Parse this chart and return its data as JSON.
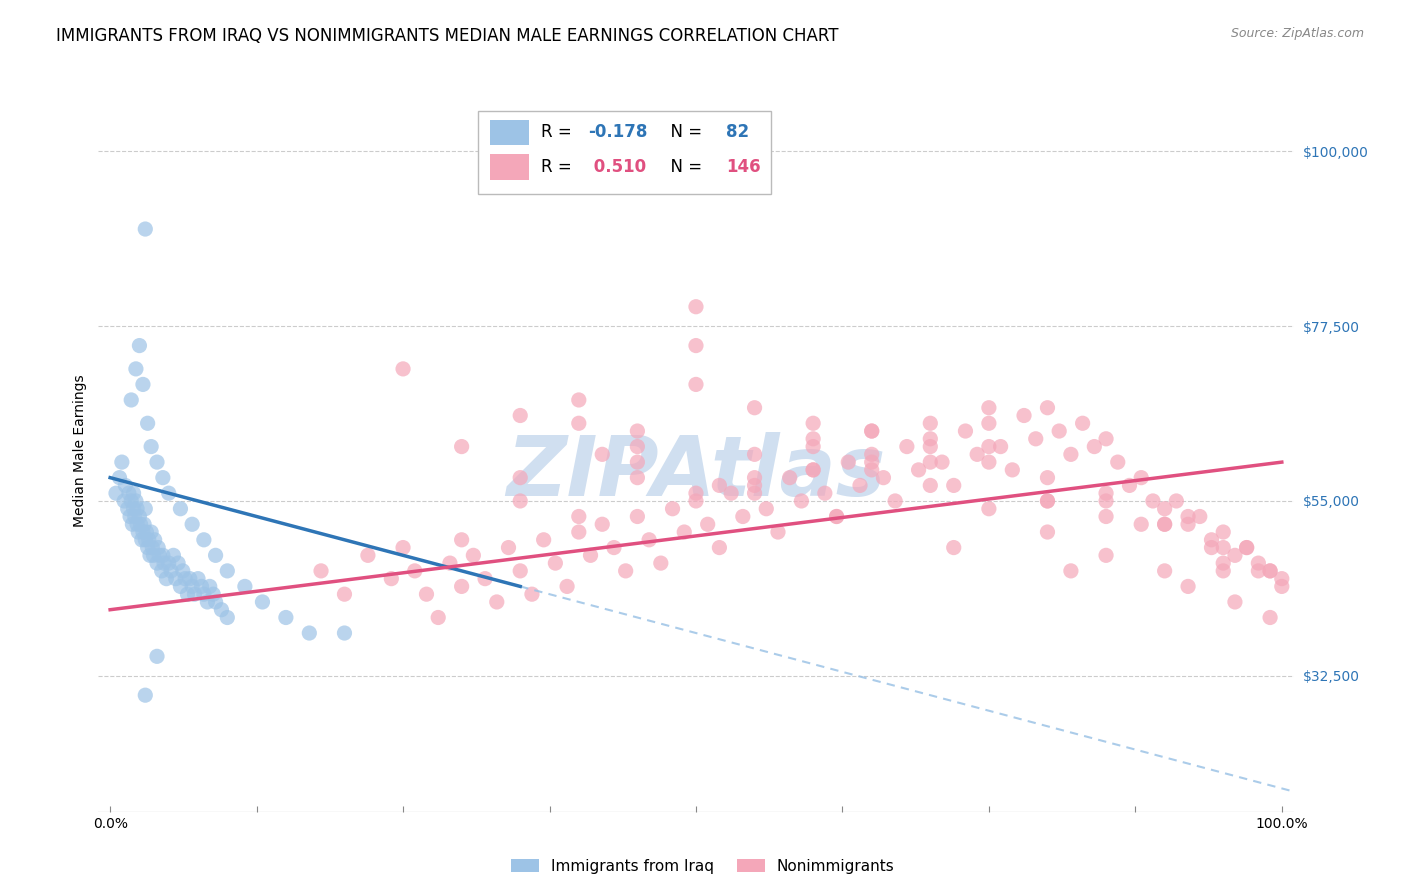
{
  "title": "IMMIGRANTS FROM IRAQ VS NONIMMIGRANTS MEDIAN MALE EARNINGS CORRELATION CHART",
  "source": "Source: ZipAtlas.com",
  "ylabel": "Median Male Earnings",
  "ytick_labels": [
    "$32,500",
    "$55,000",
    "$77,500",
    "$100,000"
  ],
  "ytick_values": [
    32500,
    55000,
    77500,
    100000
  ],
  "ymin": 15000,
  "ymax": 108000,
  "xmin": -0.01,
  "xmax": 1.01,
  "r_iraq": -0.178,
  "n_iraq": 82,
  "r_nonimm": 0.51,
  "n_nonimm": 146,
  "color_iraq": "#9DC3E6",
  "color_nonimm": "#F4A7B9",
  "color_iraq_line": "#2E75B6",
  "color_nonimm_line": "#E05080",
  "color_iraq_line_dashed": "#9DC3E6",
  "color_r_value": "#2E75B6",
  "color_r_nonimm": "#E05080",
  "watermark_color": "#D0DFF0",
  "background_color": "#FFFFFF",
  "grid_color": "#CCCCCC",
  "title_fontsize": 12,
  "axis_label_fontsize": 10,
  "tick_fontsize": 10,
  "legend_fontsize": 12,
  "iraq_x": [
    0.005,
    0.008,
    0.01,
    0.012,
    0.013,
    0.015,
    0.016,
    0.017,
    0.018,
    0.019,
    0.02,
    0.02,
    0.021,
    0.022,
    0.023,
    0.023,
    0.024,
    0.025,
    0.026,
    0.027,
    0.028,
    0.029,
    0.03,
    0.03,
    0.031,
    0.032,
    0.033,
    0.034,
    0.035,
    0.036,
    0.037,
    0.038,
    0.04,
    0.041,
    0.042,
    0.044,
    0.045,
    0.046,
    0.048,
    0.05,
    0.052,
    0.054,
    0.056,
    0.058,
    0.06,
    0.062,
    0.064,
    0.066,
    0.068,
    0.07,
    0.072,
    0.075,
    0.078,
    0.08,
    0.083,
    0.085,
    0.088,
    0.09,
    0.095,
    0.1,
    0.018,
    0.022,
    0.025,
    0.028,
    0.032,
    0.035,
    0.04,
    0.045,
    0.05,
    0.06,
    0.07,
    0.08,
    0.09,
    0.1,
    0.115,
    0.13,
    0.15,
    0.17,
    0.2,
    0.03,
    0.04,
    0.03
  ],
  "iraq_y": [
    56000,
    58000,
    60000,
    55000,
    57000,
    54000,
    56000,
    53000,
    55000,
    52000,
    54000,
    56000,
    53000,
    55000,
    52000,
    54000,
    51000,
    53000,
    52000,
    50000,
    51000,
    52000,
    50000,
    54000,
    51000,
    49000,
    50000,
    48000,
    51000,
    49000,
    48000,
    50000,
    47000,
    49000,
    48000,
    46000,
    48000,
    47000,
    45000,
    47000,
    46000,
    48000,
    45000,
    47000,
    44000,
    46000,
    45000,
    43000,
    45000,
    44000,
    43000,
    45000,
    44000,
    43000,
    42000,
    44000,
    43000,
    42000,
    41000,
    40000,
    68000,
    72000,
    75000,
    70000,
    65000,
    62000,
    60000,
    58000,
    56000,
    54000,
    52000,
    50000,
    48000,
    46000,
    44000,
    42000,
    40000,
    38000,
    38000,
    30000,
    35000,
    90000
  ],
  "nonimm_x": [
    0.18,
    0.2,
    0.22,
    0.24,
    0.25,
    0.26,
    0.27,
    0.28,
    0.29,
    0.3,
    0.31,
    0.32,
    0.33,
    0.34,
    0.35,
    0.36,
    0.37,
    0.38,
    0.39,
    0.4,
    0.41,
    0.42,
    0.43,
    0.44,
    0.45,
    0.46,
    0.47,
    0.48,
    0.49,
    0.5,
    0.51,
    0.52,
    0.53,
    0.54,
    0.55,
    0.56,
    0.57,
    0.58,
    0.59,
    0.6,
    0.61,
    0.62,
    0.63,
    0.64,
    0.65,
    0.66,
    0.67,
    0.68,
    0.69,
    0.7,
    0.71,
    0.72,
    0.73,
    0.74,
    0.75,
    0.76,
    0.77,
    0.78,
    0.79,
    0.8,
    0.81,
    0.82,
    0.83,
    0.84,
    0.85,
    0.86,
    0.87,
    0.88,
    0.89,
    0.9,
    0.91,
    0.92,
    0.93,
    0.94,
    0.95,
    0.96,
    0.97,
    0.98,
    0.99,
    1.0,
    0.3,
    0.35,
    0.4,
    0.45,
    0.5,
    0.55,
    0.6,
    0.65,
    0.7,
    0.75,
    0.8,
    0.85,
    0.9,
    0.95,
    0.4,
    0.45,
    0.5,
    0.55,
    0.6,
    0.65,
    0.7,
    0.75,
    0.8,
    0.85,
    0.9,
    0.35,
    0.45,
    0.55,
    0.65,
    0.75,
    0.85,
    0.95,
    0.3,
    0.4,
    0.5,
    0.6,
    0.7,
    0.8,
    0.9,
    0.95,
    0.25,
    0.35,
    0.45,
    0.55,
    0.65,
    0.75,
    0.85,
    0.92,
    0.97,
    0.99,
    0.5,
    0.6,
    0.7,
    0.8,
    0.88,
    0.94,
    0.98,
    1.0,
    0.42,
    0.52,
    0.62,
    0.72,
    0.82,
    0.92,
    0.96,
    0.99
  ],
  "nonimm_y": [
    46000,
    43000,
    48000,
    45000,
    49000,
    46000,
    43000,
    40000,
    47000,
    44000,
    48000,
    45000,
    42000,
    49000,
    46000,
    43000,
    50000,
    47000,
    44000,
    51000,
    48000,
    52000,
    49000,
    46000,
    53000,
    50000,
    47000,
    54000,
    51000,
    55000,
    52000,
    49000,
    56000,
    53000,
    57000,
    54000,
    51000,
    58000,
    55000,
    59000,
    56000,
    53000,
    60000,
    57000,
    61000,
    58000,
    55000,
    62000,
    59000,
    63000,
    60000,
    57000,
    64000,
    61000,
    65000,
    62000,
    59000,
    66000,
    63000,
    67000,
    64000,
    61000,
    65000,
    62000,
    63000,
    60000,
    57000,
    58000,
    55000,
    54000,
    55000,
    52000,
    53000,
    50000,
    51000,
    48000,
    49000,
    47000,
    46000,
    45000,
    62000,
    58000,
    65000,
    60000,
    80000,
    56000,
    62000,
    59000,
    65000,
    62000,
    58000,
    55000,
    52000,
    49000,
    68000,
    64000,
    70000,
    67000,
    63000,
    60000,
    57000,
    54000,
    51000,
    48000,
    46000,
    55000,
    58000,
    61000,
    64000,
    67000,
    53000,
    47000,
    50000,
    53000,
    56000,
    59000,
    62000,
    55000,
    52000,
    46000,
    72000,
    66000,
    62000,
    58000,
    64000,
    60000,
    56000,
    53000,
    49000,
    46000,
    75000,
    65000,
    60000,
    55000,
    52000,
    49000,
    46000,
    44000,
    61000,
    57000,
    53000,
    49000,
    46000,
    44000,
    42000,
    40000
  ]
}
